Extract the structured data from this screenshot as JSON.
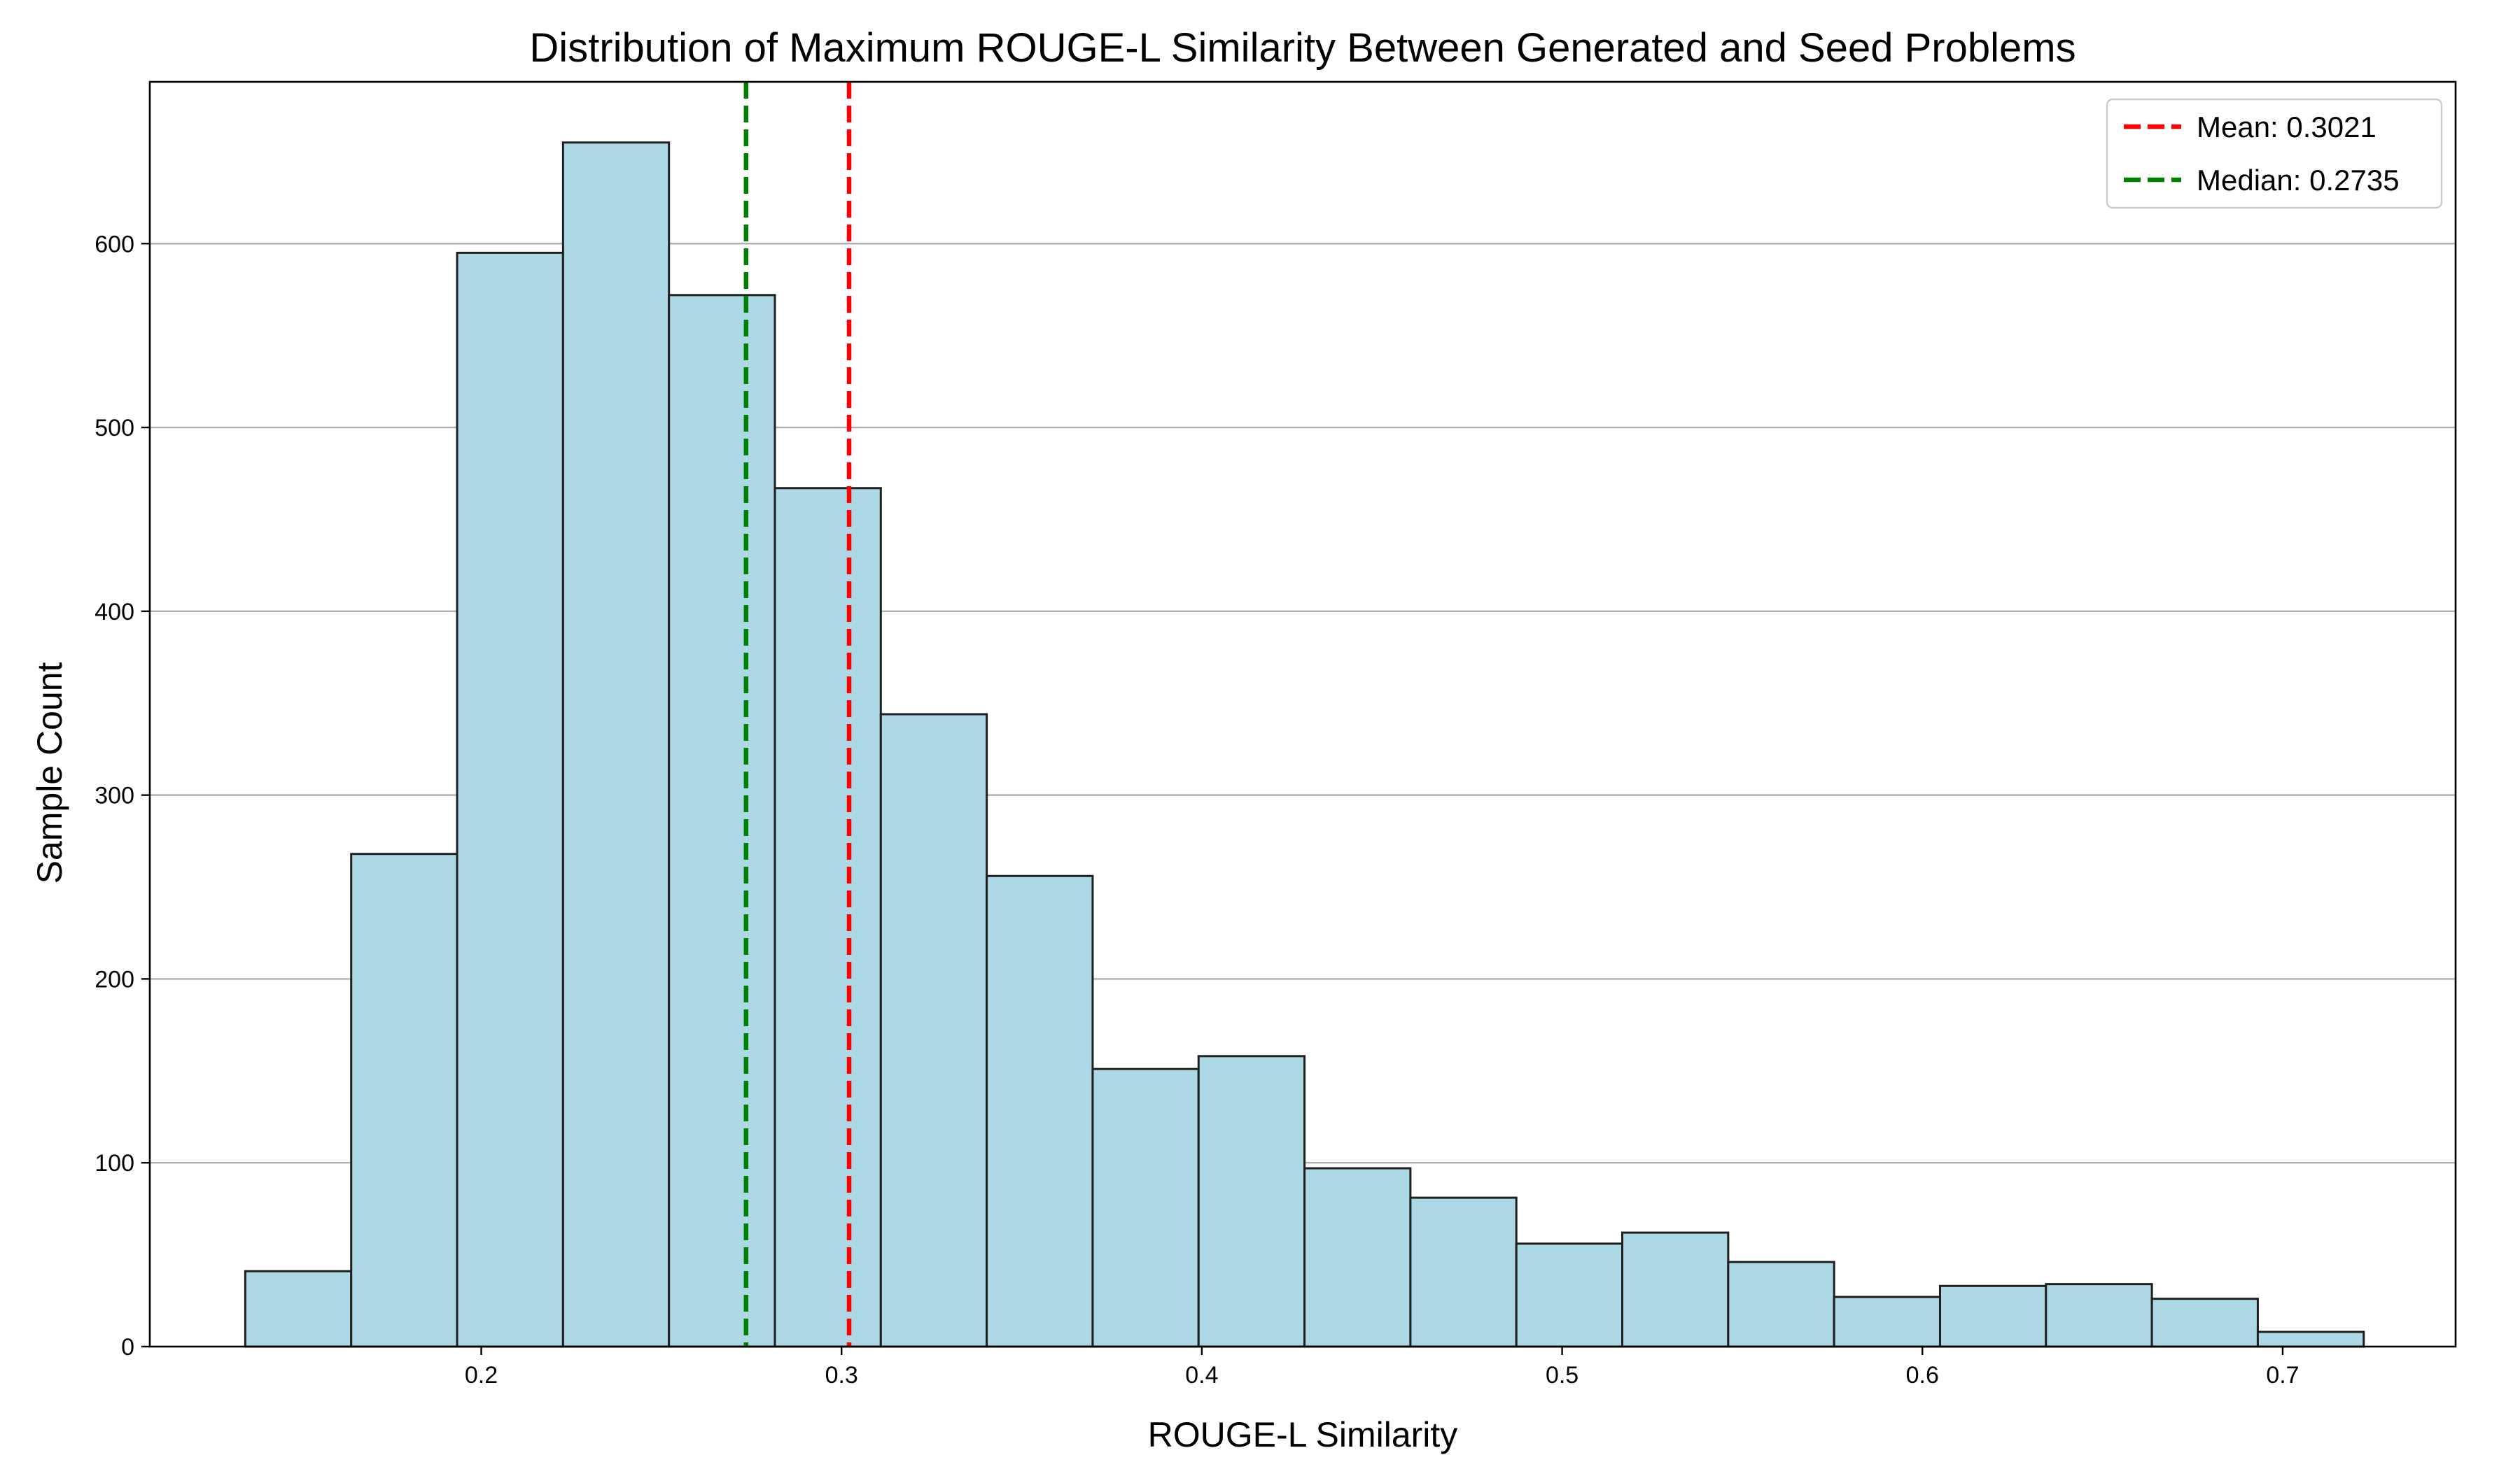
{
  "chart_data": {
    "type": "bar",
    "title": "Distribution of Maximum ROUGE-L Similarity Between Generated and Seed Problems",
    "xlabel": "ROUGE-L Similarity",
    "ylabel": "Sample Count",
    "xlim": [
      0.108,
      0.748
    ],
    "ylim": [
      0,
      688
    ],
    "grid": "y",
    "legend_position": "top-right",
    "xticks": [
      "0.2",
      "0.3",
      "0.4",
      "0.5",
      "0.6",
      "0.7"
    ],
    "xtick_values": [
      0.2,
      0.3,
      0.4,
      0.5,
      0.6,
      0.7
    ],
    "yticks": [
      "0",
      "100",
      "200",
      "300",
      "400",
      "500",
      "600"
    ],
    "ytick_values": [
      0,
      100,
      200,
      300,
      400,
      500,
      600
    ],
    "bar_color": "#add8e6",
    "bar_edge_color": "#1f1f1f",
    "bins": [
      {
        "x0": 0.1345,
        "x1": 0.1639,
        "count": 41
      },
      {
        "x0": 0.1639,
        "x1": 0.1933,
        "count": 268
      },
      {
        "x0": 0.1933,
        "x1": 0.2227,
        "count": 595
      },
      {
        "x0": 0.2227,
        "x1": 0.2521,
        "count": 655
      },
      {
        "x0": 0.2521,
        "x1": 0.2815,
        "count": 572
      },
      {
        "x0": 0.2815,
        "x1": 0.3109,
        "count": 467
      },
      {
        "x0": 0.3109,
        "x1": 0.3403,
        "count": 344
      },
      {
        "x0": 0.3403,
        "x1": 0.3697,
        "count": 256
      },
      {
        "x0": 0.3697,
        "x1": 0.3991,
        "count": 151
      },
      {
        "x0": 0.3991,
        "x1": 0.4285,
        "count": 158
      },
      {
        "x0": 0.4285,
        "x1": 0.4579,
        "count": 97
      },
      {
        "x0": 0.4579,
        "x1": 0.4873,
        "count": 81
      },
      {
        "x0": 0.4873,
        "x1": 0.5167,
        "count": 56
      },
      {
        "x0": 0.5167,
        "x1": 0.5461,
        "count": 62
      },
      {
        "x0": 0.5461,
        "x1": 0.5755,
        "count": 46
      },
      {
        "x0": 0.5755,
        "x1": 0.6049,
        "count": 27
      },
      {
        "x0": 0.6049,
        "x1": 0.6343,
        "count": 33
      },
      {
        "x0": 0.6343,
        "x1": 0.6637,
        "count": 34
      },
      {
        "x0": 0.6637,
        "x1": 0.6931,
        "count": 26
      },
      {
        "x0": 0.6931,
        "x1": 0.7225,
        "count": 8
      }
    ],
    "reference_lines": [
      {
        "label": "Mean: 0.3021",
        "value": 0.3021,
        "color": "#ff0000"
      },
      {
        "label": "Median: 0.2735",
        "value": 0.2735,
        "color": "#008000"
      }
    ]
  }
}
